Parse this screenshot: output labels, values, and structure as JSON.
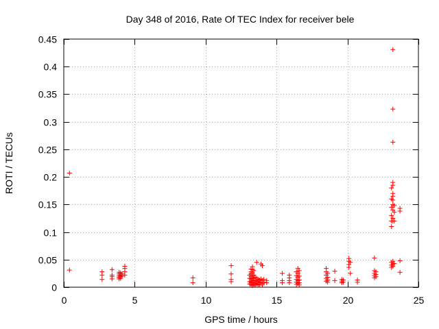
{
  "chart_data": {
    "type": "scatter",
    "title": "Day 348 of 2016, Rate Of TEC Index for receiver bele",
    "xlabel": "GPS time / hours",
    "ylabel": "ROTI / TECUs",
    "xlim": [
      0,
      25
    ],
    "ylim": [
      0,
      0.45
    ],
    "xticks": [
      0,
      5,
      10,
      15,
      20,
      25
    ],
    "yticks": [
      0,
      0.05,
      0.1,
      0.15,
      0.2,
      0.25,
      0.3,
      0.35,
      0.4,
      0.45
    ],
    "xtick_labels": [
      "0",
      "5",
      "10",
      "15",
      "20",
      "25"
    ],
    "ytick_labels": [
      "0",
      "0.05",
      "0.1",
      "0.15",
      "0.2",
      "0.25",
      "0.3",
      "0.35",
      "0.4",
      "0.45"
    ],
    "grid": true,
    "marker": "plus",
    "marker_color": "#ff0000",
    "points": [
      [
        0.4,
        0.207
      ],
      [
        0.4,
        0.031
      ],
      [
        2.7,
        0.028
      ],
      [
        2.7,
        0.022
      ],
      [
        2.7,
        0.014
      ],
      [
        3.4,
        0.032
      ],
      [
        3.4,
        0.022
      ],
      [
        3.4,
        0.019
      ],
      [
        3.4,
        0.015
      ],
      [
        3.9,
        0.027
      ],
      [
        3.9,
        0.024
      ],
      [
        3.9,
        0.021
      ],
      [
        3.9,
        0.018
      ],
      [
        3.9,
        0.015
      ],
      [
        4.0,
        0.026
      ],
      [
        4.0,
        0.022
      ],
      [
        4.0,
        0.019
      ],
      [
        4.0,
        0.016
      ],
      [
        4.1,
        0.024
      ],
      [
        4.1,
        0.02
      ],
      [
        4.3,
        0.038
      ],
      [
        4.3,
        0.034
      ],
      [
        4.3,
        0.028
      ],
      [
        4.3,
        0.022
      ],
      [
        9.1,
        0.017
      ],
      [
        9.1,
        0.008
      ],
      [
        11.8,
        0.039
      ],
      [
        11.8,
        0.024
      ],
      [
        11.8,
        0.014
      ],
      [
        11.8,
        0.01
      ],
      [
        13.1,
        0.022
      ],
      [
        13.1,
        0.016
      ],
      [
        13.1,
        0.01
      ],
      [
        13.1,
        0.006
      ],
      [
        13.2,
        0.033
      ],
      [
        13.2,
        0.028
      ],
      [
        13.2,
        0.024
      ],
      [
        13.2,
        0.019
      ],
      [
        13.2,
        0.015
      ],
      [
        13.2,
        0.011
      ],
      [
        13.2,
        0.008
      ],
      [
        13.2,
        0.005
      ],
      [
        13.3,
        0.037
      ],
      [
        13.3,
        0.032
      ],
      [
        13.3,
        0.026
      ],
      [
        13.3,
        0.021
      ],
      [
        13.3,
        0.017
      ],
      [
        13.3,
        0.013
      ],
      [
        13.3,
        0.009
      ],
      [
        13.3,
        0.006
      ],
      [
        13.3,
        0.003
      ],
      [
        13.4,
        0.03
      ],
      [
        13.4,
        0.022
      ],
      [
        13.4,
        0.016
      ],
      [
        13.4,
        0.012
      ],
      [
        13.4,
        0.008
      ],
      [
        13.4,
        0.004
      ],
      [
        13.5,
        0.018
      ],
      [
        13.5,
        0.012
      ],
      [
        13.5,
        0.007
      ],
      [
        13.5,
        0.004
      ],
      [
        13.6,
        0.045
      ],
      [
        13.6,
        0.016
      ],
      [
        13.6,
        0.011
      ],
      [
        13.6,
        0.006
      ],
      [
        13.7,
        0.014
      ],
      [
        13.7,
        0.01
      ],
      [
        13.7,
        0.005
      ],
      [
        13.8,
        0.013
      ],
      [
        13.8,
        0.008
      ],
      [
        13.8,
        0.004
      ],
      [
        13.9,
        0.042
      ],
      [
        13.9,
        0.015
      ],
      [
        13.9,
        0.009
      ],
      [
        14.0,
        0.039
      ],
      [
        14.0,
        0.012
      ],
      [
        14.0,
        0.007
      ],
      [
        14.0,
        0.004
      ],
      [
        14.1,
        0.014
      ],
      [
        14.1,
        0.009
      ],
      [
        14.3,
        0.012
      ],
      [
        14.3,
        0.008
      ],
      [
        15.4,
        0.025
      ],
      [
        15.4,
        0.012
      ],
      [
        15.4,
        0.008
      ],
      [
        15.9,
        0.022
      ],
      [
        15.9,
        0.017
      ],
      [
        15.9,
        0.012
      ],
      [
        15.9,
        0.008
      ],
      [
        16.4,
        0.028
      ],
      [
        16.4,
        0.021
      ],
      [
        16.4,
        0.014
      ],
      [
        16.4,
        0.009
      ],
      [
        16.4,
        0.005
      ],
      [
        16.5,
        0.034
      ],
      [
        16.5,
        0.025
      ],
      [
        16.5,
        0.018
      ],
      [
        16.5,
        0.012
      ],
      [
        16.5,
        0.007
      ],
      [
        16.6,
        0.03
      ],
      [
        16.6,
        0.02
      ],
      [
        16.6,
        0.013
      ],
      [
        16.6,
        0.008
      ],
      [
        16.6,
        0.004
      ],
      [
        18.5,
        0.034
      ],
      [
        18.5,
        0.028
      ],
      [
        18.5,
        0.022
      ],
      [
        18.5,
        0.016
      ],
      [
        18.5,
        0.011
      ],
      [
        18.6,
        0.025
      ],
      [
        18.6,
        0.018
      ],
      [
        18.6,
        0.013
      ],
      [
        18.6,
        0.009
      ],
      [
        19.1,
        0.029
      ],
      [
        19.1,
        0.012
      ],
      [
        19.6,
        0.014
      ],
      [
        19.6,
        0.011
      ],
      [
        19.6,
        0.008
      ],
      [
        19.7,
        0.013
      ],
      [
        19.7,
        0.009
      ],
      [
        20.1,
        0.052
      ],
      [
        20.1,
        0.047
      ],
      [
        20.1,
        0.041
      ],
      [
        20.1,
        0.036
      ],
      [
        20.2,
        0.045
      ],
      [
        20.2,
        0.025
      ],
      [
        20.7,
        0.013
      ],
      [
        20.7,
        0.009
      ],
      [
        21.9,
        0.053
      ],
      [
        21.9,
        0.03
      ],
      [
        21.9,
        0.025
      ],
      [
        21.9,
        0.021
      ],
      [
        21.9,
        0.017
      ],
      [
        22.0,
        0.028
      ],
      [
        22.0,
        0.023
      ],
      [
        22.0,
        0.019
      ],
      [
        23.1,
        0.18
      ],
      [
        23.1,
        0.16
      ],
      [
        23.1,
        0.145
      ],
      [
        23.1,
        0.13
      ],
      [
        23.1,
        0.12
      ],
      [
        23.1,
        0.11
      ],
      [
        23.1,
        0.045
      ],
      [
        23.1,
        0.04
      ],
      [
        23.1,
        0.036
      ],
      [
        23.2,
        0.431
      ],
      [
        23.2,
        0.323
      ],
      [
        23.2,
        0.263
      ],
      [
        23.2,
        0.19
      ],
      [
        23.2,
        0.185
      ],
      [
        23.2,
        0.17
      ],
      [
        23.2,
        0.165
      ],
      [
        23.2,
        0.158
      ],
      [
        23.2,
        0.15
      ],
      [
        23.2,
        0.14
      ],
      [
        23.2,
        0.125
      ],
      [
        23.2,
        0.12
      ],
      [
        23.2,
        0.047
      ],
      [
        23.2,
        0.042
      ],
      [
        23.2,
        0.038
      ],
      [
        23.3,
        0.148
      ],
      [
        23.3,
        0.136
      ],
      [
        23.3,
        0.12
      ],
      [
        23.3,
        0.043
      ],
      [
        23.7,
        0.143
      ],
      [
        23.7,
        0.138
      ],
      [
        23.7,
        0.048
      ],
      [
        23.7,
        0.027
      ]
    ]
  }
}
